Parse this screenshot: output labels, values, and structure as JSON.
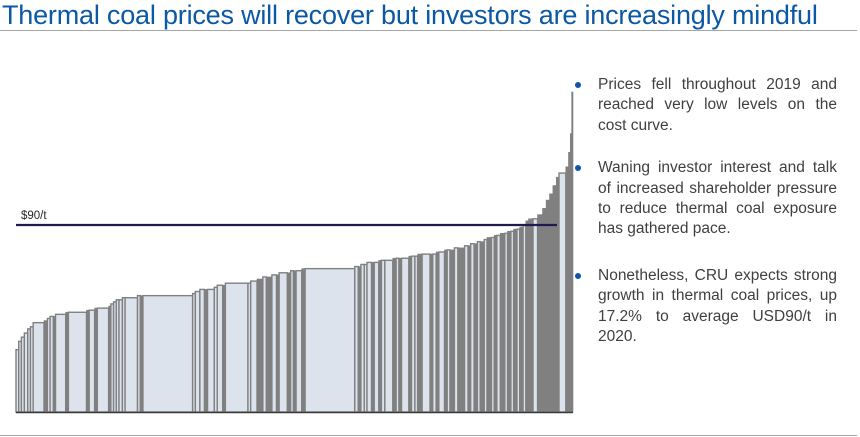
{
  "slide": {
    "title": "Thermal coal prices will recover but investors are increasingly mindful"
  },
  "bullets": [
    "Prices fell throughout 2019 and reached very low levels on the cost curve.",
    "Waning investor interest and talk of increased shareholder pressure to reduce thermal coal exposure has gathered pace.",
    "Nonetheless, CRU expects strong growth in thermal coal prices, up 17.2% to average USD90/t in 2020."
  ],
  "colors": {
    "title": "#0b58a4",
    "bullet_dot": "#0b58a4",
    "bar_light": "#dde3ed",
    "bar_dark": "#808080",
    "price_line": "#1f1a4f"
  },
  "chart_data": {
    "type": "bar",
    "subtype": "cost-curve",
    "title": "",
    "xlabel": "",
    "ylabel": "",
    "ylim": [
      0,
      154
    ],
    "grid": false,
    "annotations": [
      {
        "label": "$90/t",
        "value": 90,
        "kind": "horizontal-line"
      }
    ],
    "series": [
      {
        "name": "mines",
        "note": "approximate cash cost ($/t) and relative capacity width, read from the curve; style: light=wide light-filled, dark=narrow dark bars",
        "bars": [
          {
            "v": 30,
            "w": 1.2,
            "s": "l"
          },
          {
            "v": 34,
            "w": 1.2,
            "s": "l"
          },
          {
            "v": 36,
            "w": 1.3,
            "s": "l"
          },
          {
            "v": 38,
            "w": 1.5,
            "s": "l"
          },
          {
            "v": 40,
            "w": 1.2,
            "s": "l"
          },
          {
            "v": 41,
            "w": 1.2,
            "s": "l"
          },
          {
            "v": 43,
            "w": 4.8,
            "s": "l"
          },
          {
            "v": 44,
            "w": 1.5,
            "s": "d"
          },
          {
            "v": 45,
            "w": 1.2,
            "s": "l"
          },
          {
            "v": 46,
            "w": 1.4,
            "s": "l"
          },
          {
            "v": 46,
            "w": 1.0,
            "s": "d"
          },
          {
            "v": 47,
            "w": 4.5,
            "s": "l"
          },
          {
            "v": 48,
            "w": 1.2,
            "s": "d"
          },
          {
            "v": 48,
            "w": 8.0,
            "s": "l"
          },
          {
            "v": 49,
            "w": 1.2,
            "s": "d"
          },
          {
            "v": 49,
            "w": 2.4,
            "s": "l"
          },
          {
            "v": 50,
            "w": 1.2,
            "s": "d"
          },
          {
            "v": 50,
            "w": 5.0,
            "s": "l"
          },
          {
            "v": 51,
            "w": 1.0,
            "s": "d"
          },
          {
            "v": 52,
            "w": 1.2,
            "s": "l"
          },
          {
            "v": 53,
            "w": 1.2,
            "s": "l"
          },
          {
            "v": 54,
            "w": 1.2,
            "s": "l"
          },
          {
            "v": 54,
            "w": 1.5,
            "s": "l"
          },
          {
            "v": 55,
            "w": 1.2,
            "s": "l"
          },
          {
            "v": 55,
            "w": 5.5,
            "s": "l"
          },
          {
            "v": 56,
            "w": 1.2,
            "s": "l"
          },
          {
            "v": 56,
            "w": 1.2,
            "s": "d"
          },
          {
            "v": 56,
            "w": 22.0,
            "s": "l"
          },
          {
            "v": 57,
            "w": 1.2,
            "s": "l"
          },
          {
            "v": 58,
            "w": 2.0,
            "s": "l"
          },
          {
            "v": 59,
            "w": 2.0,
            "s": "l"
          },
          {
            "v": 59,
            "w": 1.4,
            "s": "d"
          },
          {
            "v": 59,
            "w": 3.0,
            "s": "l"
          },
          {
            "v": 60,
            "w": 1.3,
            "s": "l"
          },
          {
            "v": 61,
            "w": 2.4,
            "s": "l"
          },
          {
            "v": 61,
            "w": 1.2,
            "s": "d"
          },
          {
            "v": 62,
            "w": 10.0,
            "s": "l"
          },
          {
            "v": 62,
            "w": 1.2,
            "s": "l"
          },
          {
            "v": 63,
            "w": 2.8,
            "s": "l"
          },
          {
            "v": 64,
            "w": 2.6,
            "s": "d"
          },
          {
            "v": 65,
            "w": 1.5,
            "s": "l"
          },
          {
            "v": 65,
            "w": 2.5,
            "s": "d"
          },
          {
            "v": 66,
            "w": 2.0,
            "s": "l"
          },
          {
            "v": 66,
            "w": 1.2,
            "s": "d"
          },
          {
            "v": 67,
            "w": 3.6,
            "s": "l"
          },
          {
            "v": 67,
            "w": 1.5,
            "s": "d"
          },
          {
            "v": 68,
            "w": 1.2,
            "s": "l"
          },
          {
            "v": 68,
            "w": 1.2,
            "s": "d"
          },
          {
            "v": 68,
            "w": 2.5,
            "s": "l"
          },
          {
            "v": 69,
            "w": 1.5,
            "s": "d"
          },
          {
            "v": 69,
            "w": 22.0,
            "s": "l"
          },
          {
            "v": 70,
            "w": 1.5,
            "s": "l"
          },
          {
            "v": 70,
            "w": 1.2,
            "s": "d"
          },
          {
            "v": 71,
            "w": 1.5,
            "s": "l"
          },
          {
            "v": 71,
            "w": 1.2,
            "s": "l"
          },
          {
            "v": 72,
            "w": 2.0,
            "s": "l"
          },
          {
            "v": 72,
            "w": 1.2,
            "s": "d"
          },
          {
            "v": 72,
            "w": 2.0,
            "s": "l"
          },
          {
            "v": 73,
            "w": 1.2,
            "s": "d"
          },
          {
            "v": 73,
            "w": 1.5,
            "s": "l"
          },
          {
            "v": 73,
            "w": 3.5,
            "s": "l"
          },
          {
            "v": 74,
            "w": 1.5,
            "s": "d"
          },
          {
            "v": 74,
            "w": 1.2,
            "s": "l"
          },
          {
            "v": 74,
            "w": 1.2,
            "s": "d"
          },
          {
            "v": 74,
            "w": 3.2,
            "s": "l"
          },
          {
            "v": 75,
            "w": 1.2,
            "s": "d"
          },
          {
            "v": 75,
            "w": 1.5,
            "s": "l"
          },
          {
            "v": 75,
            "w": 1.2,
            "s": "l"
          },
          {
            "v": 76,
            "w": 2.0,
            "s": "d"
          },
          {
            "v": 76,
            "w": 3.5,
            "s": "l"
          },
          {
            "v": 76,
            "w": 1.2,
            "s": "d"
          },
          {
            "v": 76,
            "w": 1.5,
            "s": "l"
          },
          {
            "v": 77,
            "w": 1.2,
            "s": "d"
          },
          {
            "v": 77,
            "w": 2.5,
            "s": "l"
          },
          {
            "v": 78,
            "w": 1.2,
            "s": "d"
          },
          {
            "v": 78,
            "w": 1.2,
            "s": "l"
          },
          {
            "v": 78,
            "w": 2.0,
            "s": "d"
          },
          {
            "v": 79,
            "w": 1.5,
            "s": "l"
          },
          {
            "v": 79,
            "w": 3.0,
            "s": "d"
          },
          {
            "v": 80,
            "w": 1.5,
            "s": "l"
          },
          {
            "v": 80,
            "w": 1.2,
            "s": "d"
          },
          {
            "v": 81,
            "w": 1.5,
            "s": "l"
          },
          {
            "v": 81,
            "w": 1.5,
            "s": "d"
          },
          {
            "v": 82,
            "w": 1.2,
            "s": "l"
          },
          {
            "v": 82,
            "w": 1.8,
            "s": "d"
          },
          {
            "v": 83,
            "w": 1.2,
            "s": "l"
          },
          {
            "v": 84,
            "w": 2.0,
            "s": "d"
          },
          {
            "v": 84,
            "w": 1.2,
            "s": "l"
          },
          {
            "v": 85,
            "w": 1.2,
            "s": "d"
          },
          {
            "v": 85,
            "w": 1.5,
            "s": "l"
          },
          {
            "v": 86,
            "w": 2.0,
            "s": "d"
          },
          {
            "v": 86,
            "w": 1.2,
            "s": "l"
          },
          {
            "v": 87,
            "w": 1.5,
            "s": "d"
          },
          {
            "v": 87,
            "w": 1.2,
            "s": "l"
          },
          {
            "v": 88,
            "w": 1.5,
            "s": "d"
          },
          {
            "v": 88,
            "w": 1.2,
            "s": "l"
          },
          {
            "v": 89,
            "w": 1.5,
            "s": "d"
          },
          {
            "v": 90,
            "w": 1.2,
            "s": "l"
          },
          {
            "v": 92,
            "w": 1.2,
            "s": "d"
          },
          {
            "v": 93,
            "w": 2.0,
            "s": "d"
          },
          {
            "v": 93,
            "w": 2.0,
            "s": "l"
          },
          {
            "v": 95,
            "w": 2.2,
            "s": "d"
          },
          {
            "v": 98,
            "w": 1.6,
            "s": "d"
          },
          {
            "v": 102,
            "w": 1.5,
            "s": "d"
          },
          {
            "v": 105,
            "w": 1.5,
            "s": "d"
          },
          {
            "v": 109,
            "w": 1.5,
            "s": "d"
          },
          {
            "v": 113,
            "w": 1.2,
            "s": "d"
          },
          {
            "v": 115,
            "w": 3.0,
            "s": "l"
          },
          {
            "v": 118,
            "w": 1.2,
            "s": "d"
          },
          {
            "v": 125,
            "w": 0.8,
            "s": "d"
          },
          {
            "v": 134,
            "w": 0.6,
            "s": "d"
          },
          {
            "v": 154,
            "w": 0.6,
            "s": "d"
          }
        ]
      }
    ]
  }
}
